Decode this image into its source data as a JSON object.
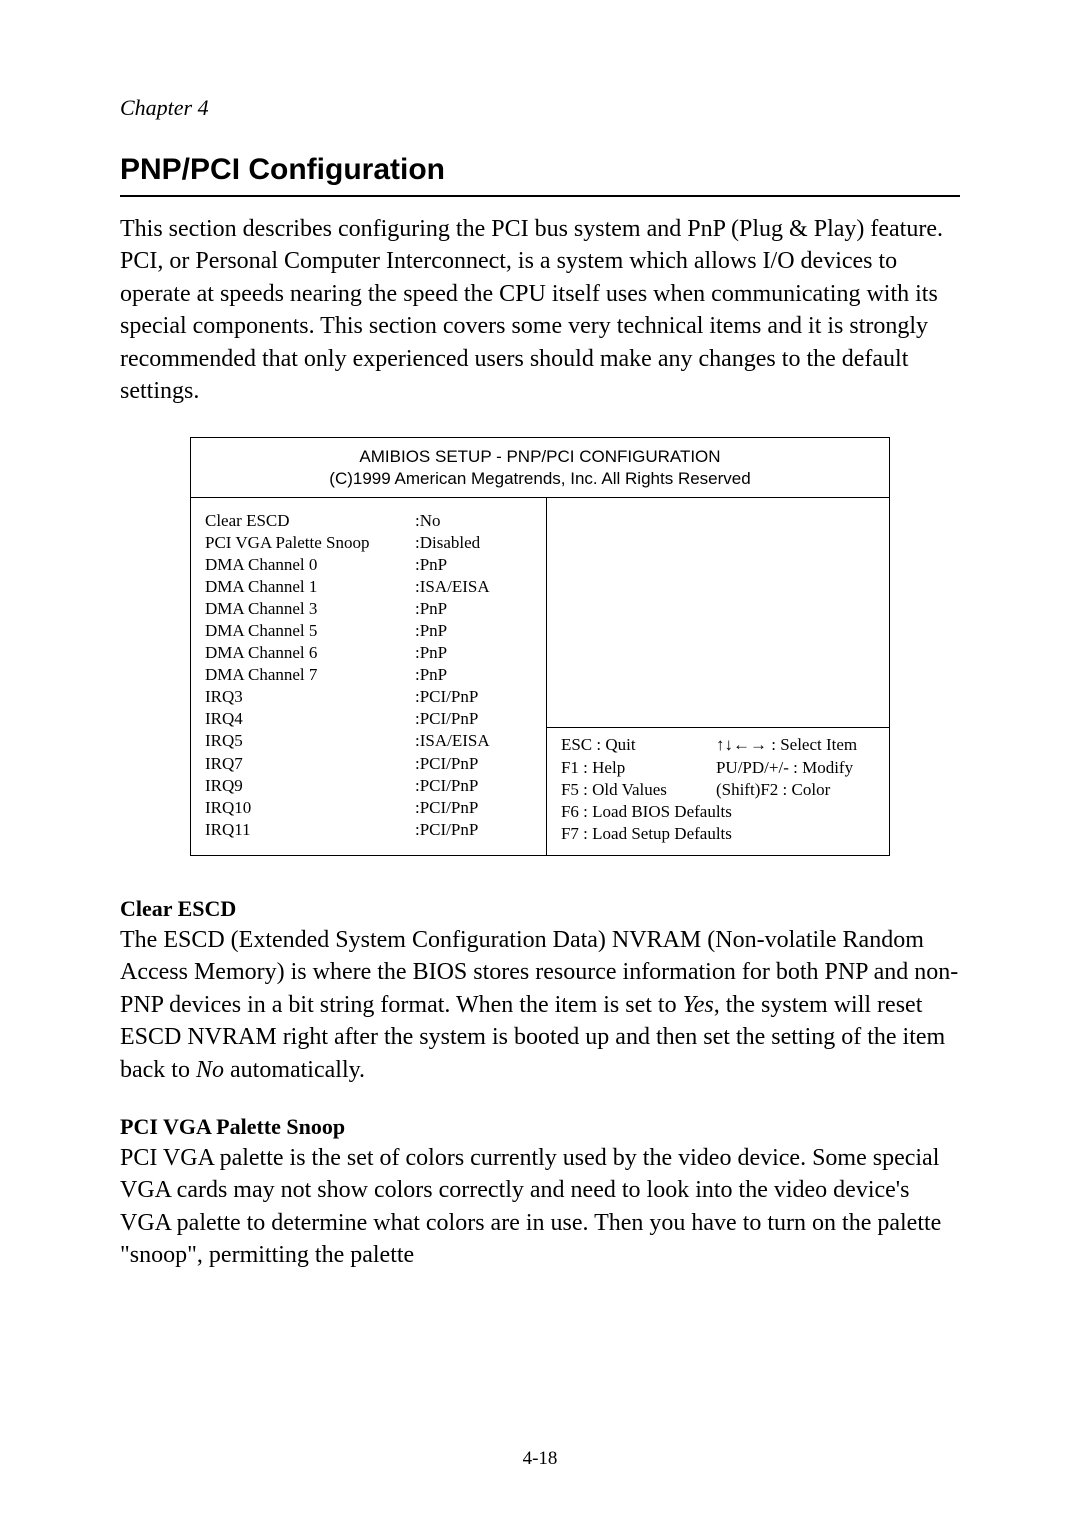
{
  "chapter_label": "Chapter 4",
  "main_heading": "PNP/PCI Configuration",
  "intro_para": "This section describes configuring the PCI bus system and PnP (Plug & Play) feature.  PCI, or Personal Computer Interconnect, is a system which allows I/O devices to operate at speeds nearing the speed the CPU itself uses when communicating with its special components.  This section covers some very technical items and it is strongly recommended that only experienced users should make any changes to the default settings.",
  "bios": {
    "title_line1": "AMIBIOS SETUP - PNP/PCI CONFIGURATION",
    "title_line2": "(C)1999 American Megatrends, Inc. All Rights Reserved",
    "settings": [
      {
        "label": "Clear ESCD",
        "value": ":No"
      },
      {
        "label": "PCI VGA Palette Snoop",
        "value": ":Disabled"
      },
      {
        "label": "DMA Channel 0",
        "value": ":PnP"
      },
      {
        "label": "DMA Channel 1",
        "value": ":ISA/EISA"
      },
      {
        "label": "DMA Channel 3",
        "value": ":PnP"
      },
      {
        "label": "DMA Channel 5",
        "value": ":PnP"
      },
      {
        "label": "DMA Channel 6",
        "value": ":PnP"
      },
      {
        "label": "DMA Channel 7",
        "value": ":PnP"
      },
      {
        "label": "IRQ3",
        "value": ":PCI/PnP"
      },
      {
        "label": "IRQ4",
        "value": ":PCI/PnP"
      },
      {
        "label": "IRQ5",
        "value": ":ISA/EISA"
      },
      {
        "label": "IRQ7",
        "value": ":PCI/PnP"
      },
      {
        "label": "IRQ9",
        "value": ":PCI/PnP"
      },
      {
        "label": "IRQ10",
        "value": ":PCI/PnP"
      },
      {
        "label": "IRQ11",
        "value": ":PCI/PnP"
      }
    ],
    "help": {
      "r0l": "ESC : Quit",
      "r0r": "↑↓←→ : Select Item",
      "r1l": "F1 : Help",
      "r1r": "PU/PD/+/- : Modify",
      "r2l": "F5 : Old Values",
      "r2r": "(Shift)F2 : Color",
      "r3": "F6 : Load BIOS Defaults",
      "r4": "F7 : Load Setup Defaults"
    }
  },
  "section1": {
    "heading": "Clear ESCD",
    "text_before_yes": "The ESCD (Extended System Configuration Data) NVRAM (Non-volatile Random Access Memory) is where the BIOS stores resource information for both PNP and non-PNP devices in a bit string format.  When the item is set to ",
    "yes": "Yes",
    "text_mid": ", the system will reset ESCD NVRAM right after the system is booted up and then set the setting of the item back to ",
    "no": "No",
    "text_after": " automatically."
  },
  "section2": {
    "heading": "PCI VGA Palette Snoop",
    "text": "PCI VGA palette is the set of colors currently used by the video device.  Some special VGA cards may not show colors correctly and need to look into the video device's VGA palette to determine what colors are in use.  Then you have to turn on the palette \"snoop\", permitting the palette"
  },
  "page_num": "4-18"
}
